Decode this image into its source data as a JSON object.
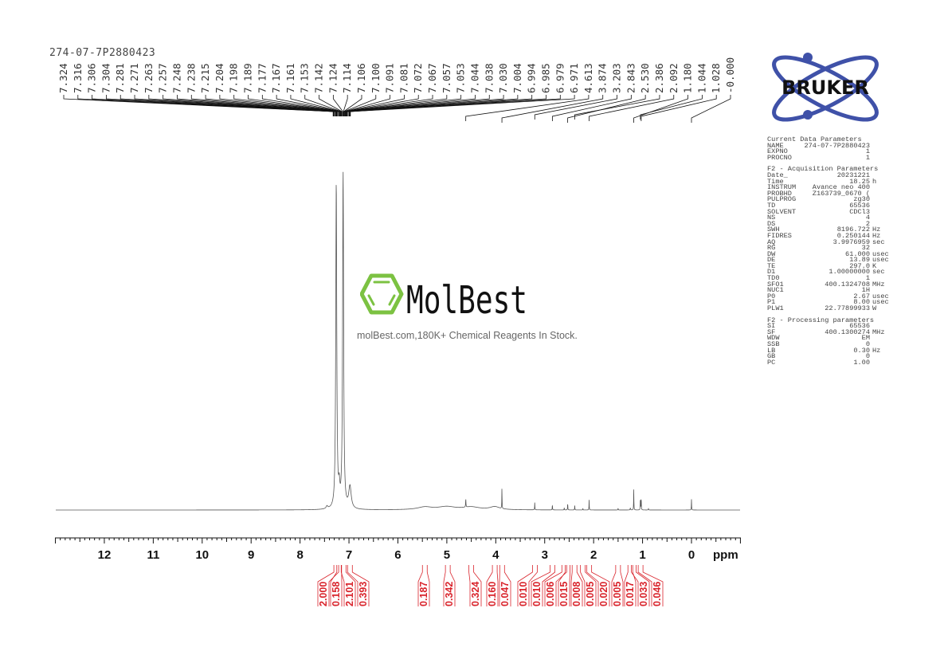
{
  "sample_name": "274-07-7P2880423",
  "watermark": {
    "brand": "MolBest",
    "tagline": "molBest.com,180K+ Chemical Reagents In Stock.",
    "accent_color": "#7cc242"
  },
  "logo": {
    "text": "BRUKER",
    "orbit_color": "#3f51a8"
  },
  "parameters": {
    "current": {
      "title": "Current Data Parameters",
      "rows": [
        {
          "k": "NAME",
          "v": "274-07-7P2880423",
          "u": ""
        },
        {
          "k": "EXPNO",
          "v": "1",
          "u": ""
        },
        {
          "k": "PROCNO",
          "v": "1",
          "u": ""
        }
      ]
    },
    "acquisition": {
      "title": "F2 - Acquisition Parameters",
      "rows": [
        {
          "k": "Date_",
          "v": "20231221",
          "u": ""
        },
        {
          "k": "Time",
          "v": "18.25",
          "u": "h"
        },
        {
          "k": "INSTRUM",
          "v": "Avance neo 400",
          "u": ""
        },
        {
          "k": "PROBHD",
          "v": "Z163739_0670 (",
          "u": ""
        },
        {
          "k": "PULPROG",
          "v": "zg30",
          "u": ""
        },
        {
          "k": "TD",
          "v": "65536",
          "u": ""
        },
        {
          "k": "SOLVENT",
          "v": "CDCl3",
          "u": ""
        },
        {
          "k": "NS",
          "v": "4",
          "u": ""
        },
        {
          "k": "DS",
          "v": "2",
          "u": ""
        },
        {
          "k": "SWH",
          "v": "8196.722",
          "u": "Hz"
        },
        {
          "k": "FIDRES",
          "v": "0.250144",
          "u": "Hz"
        },
        {
          "k": "AQ",
          "v": "3.9976959",
          "u": "sec"
        },
        {
          "k": "RG",
          "v": "32",
          "u": ""
        },
        {
          "k": "DW",
          "v": "61.000",
          "u": "usec"
        },
        {
          "k": "DE",
          "v": "13.89",
          "u": "usec"
        },
        {
          "k": "TE",
          "v": "297.0",
          "u": "K"
        },
        {
          "k": "D1",
          "v": "1.00000000",
          "u": "sec"
        },
        {
          "k": "TD0",
          "v": "1",
          "u": ""
        },
        {
          "k": "SFO1",
          "v": "400.1324708",
          "u": "MHz"
        },
        {
          "k": "NUC1",
          "v": "1H",
          "u": ""
        },
        {
          "k": "P0",
          "v": "2.67",
          "u": "usec"
        },
        {
          "k": "P1",
          "v": "8.00",
          "u": "usec"
        },
        {
          "k": "PLW1",
          "v": "22.77899933",
          "u": "W"
        }
      ]
    },
    "processing": {
      "title": "F2 - Processing parameters",
      "rows": [
        {
          "k": "SI",
          "v": "65536",
          "u": ""
        },
        {
          "k": "SF",
          "v": "400.1300274",
          "u": "MHz"
        },
        {
          "k": "WDW",
          "v": "EM",
          "u": ""
        },
        {
          "k": "SSB",
          "v": "0",
          "u": ""
        },
        {
          "k": "LB",
          "v": "0.30",
          "u": "Hz"
        },
        {
          "k": "GB",
          "v": "0",
          "u": ""
        },
        {
          "k": "PC",
          "v": "1.00",
          "u": ""
        }
      ]
    }
  },
  "chart_data": {
    "type": "line",
    "xlabel": "ppm",
    "xlim": [
      13,
      -1
    ],
    "x_reversed": true,
    "x_ticks": [
      "12",
      "11",
      "10",
      "9",
      "8",
      "7",
      "6",
      "5",
      "4",
      "3",
      "2",
      "1",
      "0"
    ],
    "peak_labels": [
      "7.324",
      "7.316",
      "7.306",
      "7.304",
      "7.281",
      "7.271",
      "7.263",
      "7.257",
      "7.248",
      "7.238",
      "7.215",
      "7.204",
      "7.198",
      "7.189",
      "7.177",
      "7.167",
      "7.161",
      "7.153",
      "7.142",
      "7.124",
      "7.114",
      "7.106",
      "7.100",
      "7.091",
      "7.081",
      "7.072",
      "7.067",
      "7.057",
      "7.053",
      "7.044",
      "7.038",
      "7.030",
      "7.004",
      "6.994",
      "6.985",
      "6.979",
      "6.971",
      "4.613",
      "3.874",
      "3.203",
      "2.843",
      "2.530",
      "2.386",
      "2.092",
      "1.180",
      "1.044",
      "1.028",
      "-0.000"
    ],
    "peaks": [
      {
        "ppm": 7.26,
        "intensity": 0.97,
        "width": 0.012
      },
      {
        "ppm": 7.2,
        "intensity": 0.05,
        "width": 0.015
      },
      {
        "ppm": 7.12,
        "intensity": 1.0,
        "width": 0.012
      },
      {
        "ppm": 6.98,
        "intensity": 0.066,
        "width": 0.03
      },
      {
        "ppm": 7.45,
        "intensity": 0.008,
        "width": 0.02
      },
      {
        "ppm": 5.45,
        "intensity": 0.008,
        "width": 0.18
      },
      {
        "ppm": 5.0,
        "intensity": 0.009,
        "width": 0.22
      },
      {
        "ppm": 4.5,
        "intensity": 0.008,
        "width": 0.2
      },
      {
        "ppm": 4.02,
        "intensity": 0.009,
        "width": 0.12
      },
      {
        "ppm": 4.613,
        "intensity": 0.025,
        "width": 0.004
      },
      {
        "ppm": 3.874,
        "intensity": 0.064,
        "width": 0.003
      },
      {
        "ppm": 3.203,
        "intensity": 0.022,
        "width": 0.003
      },
      {
        "ppm": 2.843,
        "intensity": 0.017,
        "width": 0.003
      },
      {
        "ppm": 2.6,
        "intensity": 0.007,
        "width": 0.003
      },
      {
        "ppm": 2.53,
        "intensity": 0.022,
        "width": 0.003
      },
      {
        "ppm": 2.386,
        "intensity": 0.014,
        "width": 0.003
      },
      {
        "ppm": 2.22,
        "intensity": 0.005,
        "width": 0.003
      },
      {
        "ppm": 2.092,
        "intensity": 0.03,
        "width": 0.003
      },
      {
        "ppm": 1.5,
        "intensity": 0.006,
        "width": 0.003
      },
      {
        "ppm": 1.25,
        "intensity": 0.006,
        "width": 0.005
      },
      {
        "ppm": 1.18,
        "intensity": 0.062,
        "width": 0.003
      },
      {
        "ppm": 1.044,
        "intensity": 0.04,
        "width": 0.003
      },
      {
        "ppm": 1.028,
        "intensity": 0.04,
        "width": 0.003
      },
      {
        "ppm": 0.88,
        "intensity": 0.004,
        "width": 0.004
      },
      {
        "ppm": 0.0,
        "intensity": 0.032,
        "width": 0.003
      }
    ],
    "integrals": [
      {
        "value": "2.000",
        "ppm": 7.26
      },
      {
        "value": "0.158",
        "ppm": 7.2
      },
      {
        "value": "2.101",
        "ppm": 7.11
      },
      {
        "value": "0.393",
        "ppm": 6.98
      },
      {
        "value": "0.187",
        "ppm": 5.45
      },
      {
        "value": "0.342",
        "ppm": 4.98
      },
      {
        "value": "0.324",
        "ppm": 4.5
      },
      {
        "value": "0.160",
        "ppm": 4.02
      },
      {
        "value": "0.047",
        "ppm": 3.87
      },
      {
        "value": "0.010",
        "ppm": 3.2
      },
      {
        "value": "0.010",
        "ppm": 2.84
      },
      {
        "value": "0.006",
        "ppm": 2.6
      },
      {
        "value": "0.015",
        "ppm": 2.53
      },
      {
        "value": "0.008",
        "ppm": 2.39
      },
      {
        "value": "0.005",
        "ppm": 2.22
      },
      {
        "value": "0.020",
        "ppm": 2.09
      },
      {
        "value": "0.005",
        "ppm": 1.5
      },
      {
        "value": "0.017",
        "ppm": 1.25
      },
      {
        "value": "0.033",
        "ppm": 1.18
      },
      {
        "value": "0.046",
        "ppm": 1.04
      }
    ],
    "spectrum_color": "#555555",
    "integral_color": "#d9232b"
  }
}
